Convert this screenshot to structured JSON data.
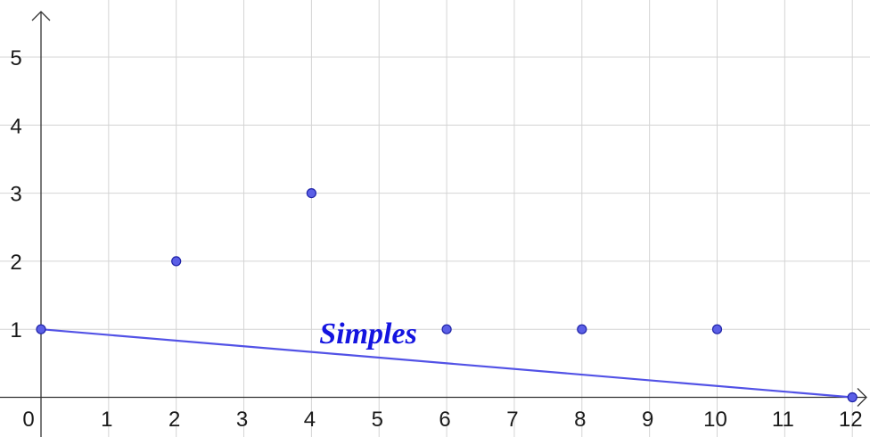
{
  "chart_data": {
    "type": "scatter",
    "xlim": [
      0,
      12
    ],
    "ylim": [
      0,
      5.5
    ],
    "x_ticks": [
      0,
      1,
      2,
      3,
      4,
      5,
      6,
      7,
      8,
      9,
      10,
      11,
      12
    ],
    "y_ticks": [
      1,
      2,
      3,
      4,
      5
    ],
    "grid": true,
    "points": [
      {
        "x": 0,
        "y": 1
      },
      {
        "x": 2,
        "y": 2
      },
      {
        "x": 4,
        "y": 3
      },
      {
        "x": 6,
        "y": 1
      },
      {
        "x": 8,
        "y": 1
      },
      {
        "x": 10,
        "y": 1
      },
      {
        "x": 12,
        "y": 0
      }
    ],
    "line": {
      "from": [
        0,
        1
      ],
      "to": [
        12,
        0
      ]
    },
    "annotation": {
      "text": "Simples",
      "x": 5,
      "y": 1
    },
    "colors": {
      "points": "#5b5fe6",
      "line": "#5252e6",
      "annotation": "#1414e0",
      "grid": "#d4d4d4"
    }
  }
}
